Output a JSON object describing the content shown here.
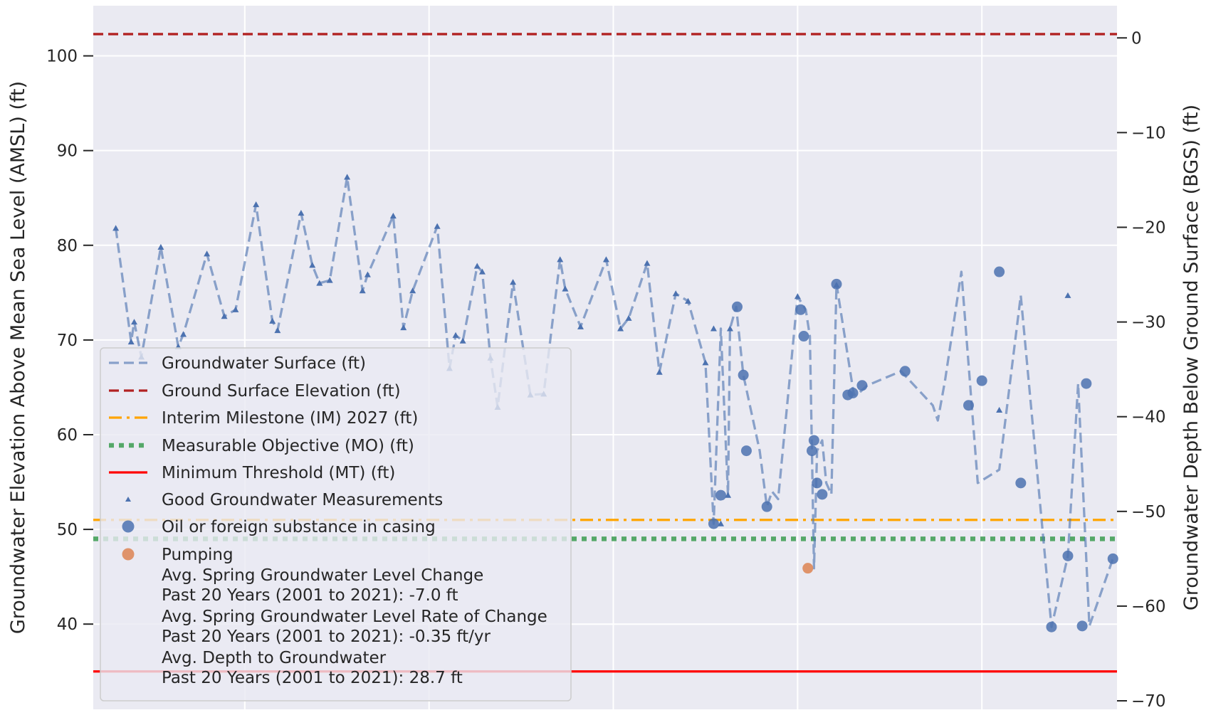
{
  "chart_data": {
    "type": "line",
    "title": "",
    "xlabel": "",
    "ylabel": "Groundwater Elevation Above Mean Sea Level (AMSL) (ft)",
    "ylabel_right": "Groundwater Depth Below Ground Surface (BGS) (ft)",
    "ylim": [
      31,
      105.3
    ],
    "ylim_right": [
      -70.9,
      3.4
    ],
    "xlim": [
      0,
      100
    ],
    "yticks": [
      40,
      50,
      60,
      70,
      80,
      90,
      100
    ],
    "yticks_right": [
      0,
      -10,
      -20,
      -30,
      -40,
      -50,
      -60,
      -70
    ],
    "ytick_labels": [
      "40",
      "50",
      "60",
      "70",
      "80",
      "90",
      "100"
    ],
    "ytick_labels_right": [
      "0",
      "−10",
      "−20",
      "−30",
      "−40",
      "−50",
      "−60",
      "−70"
    ],
    "xgrid": [
      14.8,
      32.8,
      50.8,
      68.8,
      86.8
    ],
    "grid": true,
    "legend_position": "lower-left",
    "reference_lines": [
      {
        "name": "Ground Surface Elevation (ft)",
        "y": 102.3,
        "color": "#b22222",
        "style": "dashed"
      },
      {
        "name": "Interim Milestone (IM) 2027 (ft)",
        "y": 51.0,
        "color": "#ffa500",
        "style": "dashdot"
      },
      {
        "name": "Measurable Objective (MO) (ft)",
        "y": 49.0,
        "color": "#55a868",
        "style": "dotted"
      },
      {
        "name": "Minimum Threshold (MT) (ft)",
        "y": 35.0,
        "color": "#ff0000",
        "style": "solid"
      }
    ],
    "series": [
      {
        "name": "Groundwater Surface (ft)",
        "color": "#4c72b0",
        "style": "dashed",
        "x": [
          2.2,
          3.7,
          4.0,
          4.7,
          6.6,
          8.3,
          8.8,
          11.1,
          12.8,
          13.9,
          15.9,
          17.5,
          18.0,
          20.3,
          21.4,
          22.1,
          23.1,
          24.8,
          26.3,
          26.8,
          29.3,
          30.3,
          31.2,
          33.6,
          34.8,
          35.4,
          36.1,
          37.5,
          38.0,
          38.8,
          39.5,
          41.0,
          42.7,
          44.0,
          45.6,
          46.1,
          47.6,
          50.1,
          51.5,
          52.3,
          54.1,
          55.3,
          56.9,
          58.1,
          59.8,
          60.6,
          61.3,
          62.0,
          62.2,
          62.8,
          63.5,
          65.1,
          65.8,
          66.3,
          66.9,
          68.8,
          69.6,
          70.0,
          70.4,
          70.7,
          71.2,
          71.6,
          72.1,
          72.6,
          74.3,
          74.8,
          75.6,
          78.9,
          82.0,
          82.5,
          83.2,
          84.8,
          86.4,
          88.5,
          90.6,
          93.6,
          95.2,
          96.2,
          97.3,
          99.6
        ]
      },
      {
        "name": "Good Groundwater Measurements",
        "color": "#4c72b0",
        "marker": "triangle",
        "x": [
          2.2,
          3.7,
          4.0,
          4.7,
          6.6,
          8.3,
          8.8,
          11.1,
          12.8,
          13.9,
          15.9,
          17.5,
          18.0,
          20.3,
          21.4,
          22.1,
          23.1,
          24.8,
          26.3,
          26.8,
          29.3,
          30.3,
          31.2,
          33.6,
          34.8,
          35.4,
          36.1,
          37.5,
          38.0,
          38.8,
          39.5,
          41.0,
          42.7,
          44.0,
          45.6,
          46.1,
          47.6,
          50.1,
          51.5,
          52.3,
          54.1,
          55.3,
          56.9,
          58.1,
          59.8,
          60.6,
          61.3,
          62.0,
          62.2,
          68.8,
          72.6,
          88.5,
          95.2
        ],
        "y": [
          81.8,
          69.8,
          71.9,
          68.2,
          79.8,
          69.3,
          70.6,
          79.1,
          72.5,
          73.2,
          84.3,
          72.0,
          71.0,
          83.4,
          77.9,
          76.0,
          76.3,
          87.2,
          75.2,
          76.9,
          83.1,
          71.3,
          75.2,
          82.0,
          67.0,
          70.5,
          69.9,
          77.8,
          77.2,
          68.1,
          62.9,
          76.1,
          64.2,
          64.3,
          78.5,
          75.4,
          71.4,
          78.5,
          71.2,
          72.3,
          78.1,
          66.6,
          74.9,
          74.1,
          67.6,
          71.2,
          50.6,
          53.6,
          71.2,
          74.6,
          75.8,
          62.6,
          74.7
        ]
      },
      {
        "name": "Oil or foreign substance in casing",
        "color": "#4c72b0",
        "marker": "circle",
        "x": [
          60.6,
          61.3,
          62.9,
          63.5,
          63.8,
          65.8,
          69.1,
          69.4,
          70.2,
          70.4,
          70.7,
          71.2,
          72.6,
          73.7,
          74.2,
          75.1,
          79.3,
          85.5,
          86.8,
          88.5,
          90.6,
          93.6,
          95.2,
          96.6,
          97.0,
          99.6
        ],
        "y": [
          50.6,
          53.6,
          73.5,
          66.3,
          58.3,
          52.4,
          73.2,
          70.4,
          58.3,
          59.4,
          54.9,
          53.7,
          75.9,
          64.2,
          64.4,
          65.2,
          66.7,
          63.1,
          65.7,
          77.2,
          54.9,
          39.7,
          47.2,
          39.8,
          65.4,
          46.9
        ]
      },
      {
        "name": "Pumping",
        "color": "#dd8452",
        "marker": "circle",
        "x": [
          69.8
        ],
        "y": [
          45.9
        ]
      }
    ],
    "line_y": [
      81.8,
      69.8,
      71.9,
      68.2,
      79.8,
      69.3,
      70.6,
      79.1,
      72.5,
      73.2,
      84.3,
      72.0,
      71.0,
      83.4,
      77.9,
      76.0,
      76.3,
      87.2,
      75.2,
      76.9,
      83.1,
      71.3,
      75.2,
      82.0,
      67.0,
      70.5,
      69.9,
      77.8,
      77.2,
      68.1,
      62.9,
      76.1,
      64.2,
      64.3,
      78.5,
      75.4,
      71.4,
      78.5,
      71.2,
      72.3,
      78.1,
      66.6,
      74.9,
      74.1,
      67.6,
      50.6,
      71.2,
      53.6,
      71.2,
      73.5,
      66.3,
      58.3,
      52.4,
      54.0,
      53.2,
      74.6,
      73.2,
      70.4,
      45.9,
      58.3,
      59.4,
      54.9,
      53.7,
      75.9,
      64.2,
      64.4,
      65.2,
      66.7,
      63.1,
      61.5,
      65.7,
      77.2,
      54.9,
      56.3,
      74.7,
      39.7,
      47.2,
      65.4,
      39.8,
      46.9
    ],
    "legend": {
      "entries": [
        "Groundwater Surface (ft)",
        "Ground Surface Elevation (ft)",
        "Interim Milestone (IM) 2027 (ft)",
        "Measurable Objective (MO) (ft)",
        "Minimum Threshold (MT) (ft)",
        "Good Groundwater Measurements",
        "Oil or foreign substance in casing",
        "Pumping"
      ],
      "notes": [
        "Avg. Spring Groundwater Level Change",
        "Past 20 Years (2001 to 2021): -7.0 ft",
        "Avg. Spring Groundwater Level Rate of Change",
        "Past 20 Years (2001 to 2021): -0.35 ft/yr",
        "Avg. Depth to Groundwater",
        "Past 20 Years (2001 to 2021): 28.7 ft"
      ]
    },
    "colors": {
      "background": "#eaeaf2",
      "grid": "#ffffff",
      "text": "#262626"
    }
  }
}
